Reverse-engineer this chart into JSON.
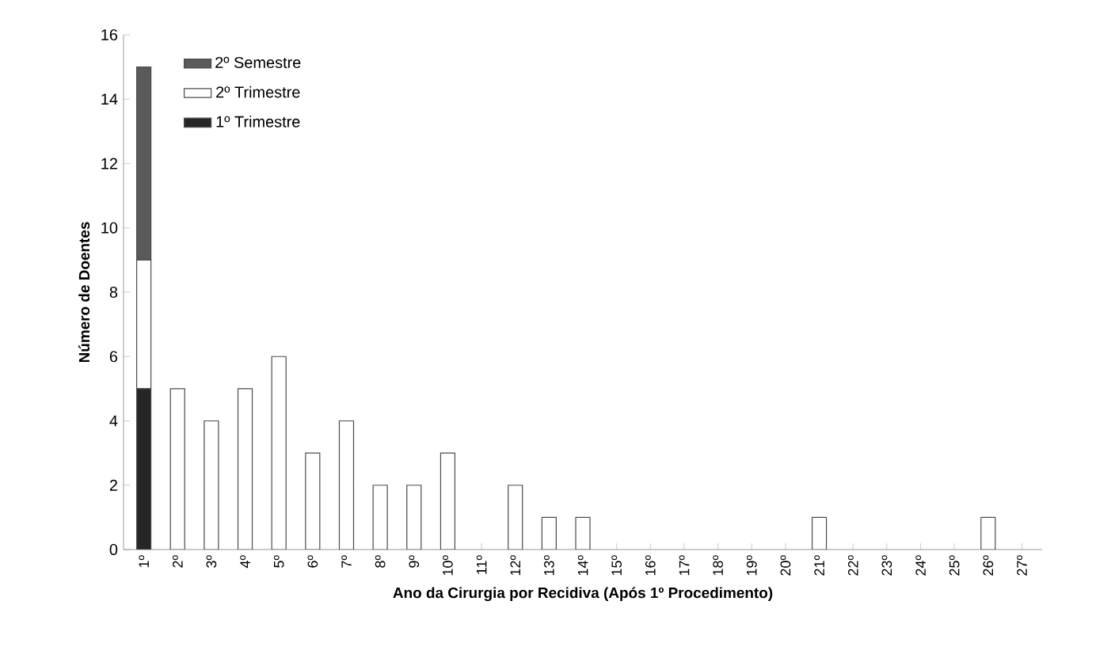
{
  "chart_data": {
    "type": "bar",
    "stacked": true,
    "xlabel": "Ano da Cirurgia por Recidiva (Após 1º Procedimento)",
    "ylabel": "Número de Doentes",
    "categories": [
      "1º",
      "2º",
      "3º",
      "4º",
      "5º",
      "6º",
      "7º",
      "8º",
      "9º",
      "10º",
      "11º",
      "12º",
      "13º",
      "14º",
      "15º",
      "16º",
      "17º",
      "18º",
      "19º",
      "20º",
      "21º",
      "22º",
      "23º",
      "24º",
      "25º",
      "26º",
      "27º"
    ],
    "series": [
      {
        "name": "1º Trimestre",
        "color": "#262626",
        "values": [
          5,
          null,
          null,
          null,
          null,
          null,
          null,
          null,
          null,
          null,
          null,
          null,
          null,
          null,
          null,
          null,
          null,
          null,
          null,
          null,
          null,
          null,
          null,
          null,
          null,
          null,
          null
        ]
      },
      {
        "name": "2º Trimestre",
        "color": "#ffffff",
        "values": [
          4,
          null,
          null,
          null,
          null,
          null,
          null,
          null,
          null,
          null,
          null,
          null,
          null,
          null,
          null,
          null,
          null,
          null,
          null,
          null,
          null,
          null,
          null,
          null,
          null,
          null,
          null
        ]
      },
      {
        "name": "2º Semestre",
        "color": "#5a5a5a",
        "values": [
          6,
          null,
          null,
          null,
          null,
          null,
          null,
          null,
          null,
          null,
          null,
          null,
          null,
          null,
          null,
          null,
          null,
          null,
          null,
          null,
          null,
          null,
          null,
          null,
          null,
          null,
          null
        ]
      },
      {
        "color": "#ffffff",
        "values": [
          null,
          5,
          4,
          5,
          6,
          3,
          4,
          2,
          2,
          3,
          0,
          2,
          1,
          1,
          0,
          0,
          0,
          0,
          0,
          0,
          1,
          0,
          0,
          0,
          0,
          1,
          0
        ]
      }
    ],
    "ylim": [
      0,
      16
    ],
    "yticks": [
      0,
      2,
      4,
      6,
      8,
      10,
      12,
      14,
      16
    ],
    "grid": false,
    "legend": "top left"
  }
}
